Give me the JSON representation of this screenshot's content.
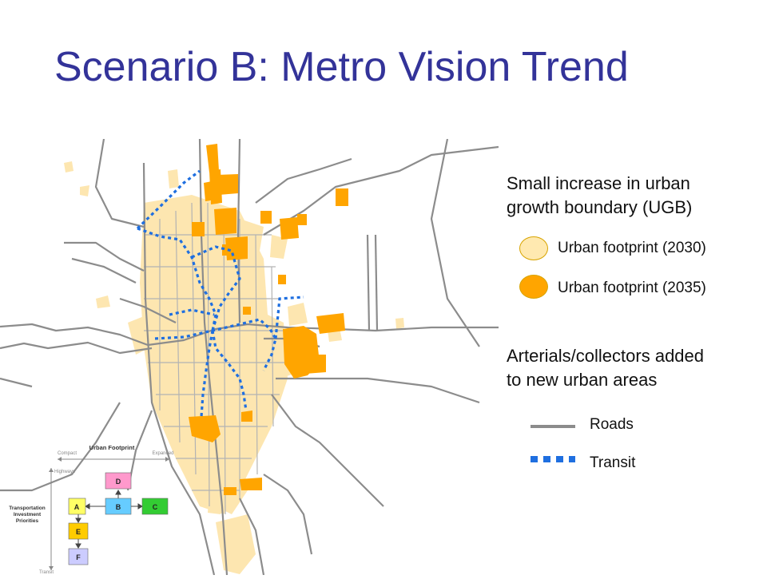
{
  "slide": {
    "title": "Scenario B: Metro Vision Trend"
  },
  "legend": {
    "heading1": [
      "Small increase in urban",
      "growth boundary (UGB)"
    ],
    "footprint_2030": {
      "label": "Urban footprint (2030)",
      "color": "#FFE9B0"
    },
    "footprint_2035": {
      "label": "Urban footprint (2035)",
      "color": "#FFA500"
    },
    "heading2": [
      "Arterials/collectors added",
      "to new urban areas"
    ],
    "roads": {
      "label": "Roads",
      "color": "#8c8c8c"
    },
    "transit": {
      "label": "Transit",
      "color": "#1f6fe0"
    }
  },
  "inset": {
    "top_axis": "Urban Footprint",
    "compact": "Compact",
    "expanded": "Expanded",
    "highways": "Highways",
    "transit": "Transit",
    "side_label": [
      "Transportation",
      "Investment",
      "Priorities"
    ],
    "boxes": [
      {
        "id": "A",
        "color": "#FFFF66"
      },
      {
        "id": "B",
        "color": "#66CCFF"
      },
      {
        "id": "C",
        "color": "#33CC33"
      },
      {
        "id": "D",
        "color": "#FF99CC"
      },
      {
        "id": "E",
        "color": "#FFCC00"
      },
      {
        "id": "F",
        "color": "#CCCCFF"
      }
    ]
  }
}
